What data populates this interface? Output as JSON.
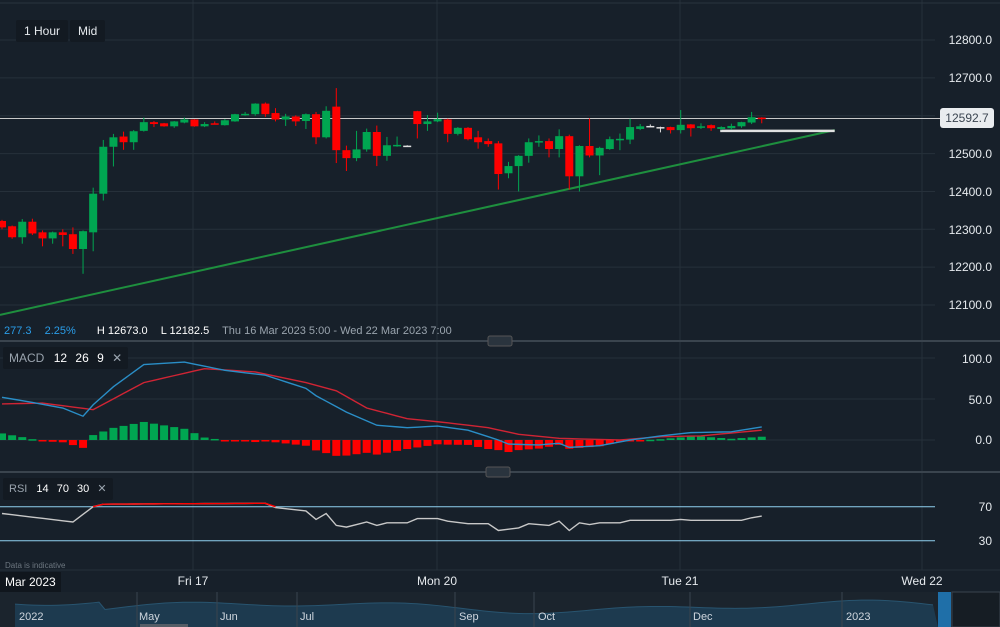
{
  "toolbar": {
    "interval": "1 Hour",
    "price_type": "Mid"
  },
  "info_bar": {
    "change": "277.3",
    "change_pct": "2.25%",
    "high": "H 12673.0",
    "low": "L 12182.5",
    "range": "Thu 16 Mar 2023 5:00 - Wed 22 Mar 2023 7:00"
  },
  "colors": {
    "background": "#17202a",
    "up": "#00a651",
    "down": "#ff0000",
    "trendline": "#1e8f3e",
    "macd": "#2a8ec7",
    "signal": "#d02434",
    "rsi": "#c8c8c8",
    "rsi_overbought": "#ff0000"
  },
  "current_price": "12592.7",
  "price_axis": [
    "12800.0",
    "12700.0",
    "12600.0",
    "12500.0",
    "12400.0",
    "12300.0",
    "12200.0",
    "12100.0"
  ],
  "macd": {
    "label": "MACD",
    "params": [
      "12",
      "26",
      "9"
    ],
    "close": "✕",
    "axis": [
      "100.0",
      "50.0",
      "0.0"
    ]
  },
  "rsi": {
    "label": "RSI",
    "params": [
      "14",
      "70",
      "30"
    ],
    "close": "✕",
    "axis": [
      "70",
      "30"
    ]
  },
  "disclaimer": "Data is indicative",
  "time_axis": {
    "current": "Mar 2023",
    "labels": [
      "Fri 17",
      "Mon 20",
      "Tue 21",
      "Wed 22"
    ]
  },
  "navigator": {
    "labels": [
      "2022",
      "May",
      "Jun",
      "Jul",
      "Sep",
      "Oct",
      "Dec",
      "2023"
    ]
  },
  "chart_data": {
    "type": "candlestick",
    "interval": "1 Hour",
    "ylim": [
      12050,
      12850
    ],
    "candles_ohlc": [
      [
        12322,
        12325,
        12300,
        12305
      ],
      [
        12308,
        12310,
        12275,
        12279
      ],
      [
        12279,
        12327,
        12262,
        12320
      ],
      [
        12320,
        12328,
        12285,
        12289
      ],
      [
        12292,
        12297,
        12255,
        12276
      ],
      [
        12276,
        12294,
        12262,
        12292
      ],
      [
        12292,
        12300,
        12255,
        12285
      ],
      [
        12287,
        12305,
        12235,
        12248
      ],
      [
        12248,
        12297,
        12182.5,
        12295
      ],
      [
        12292,
        12410,
        12242,
        12394
      ],
      [
        12394,
        12536,
        12376,
        12518
      ],
      [
        12518,
        12552,
        12466,
        12543
      ],
      [
        12545,
        12558,
        12510,
        12530
      ],
      [
        12530,
        12562,
        12510,
        12559
      ],
      [
        12560,
        12595,
        12558,
        12583
      ],
      [
        12583,
        12586,
        12570,
        12578
      ],
      [
        12580,
        12581,
        12571,
        12572
      ],
      [
        12572,
        12586,
        12568,
        12585
      ],
      [
        12582,
        12595,
        12580,
        12590
      ],
      [
        12590,
        12591,
        12571,
        12572
      ],
      [
        12572,
        12583,
        12570,
        12578
      ],
      [
        12580,
        12585,
        12577,
        12578
      ],
      [
        12575,
        12591,
        12574,
        12588
      ],
      [
        12585,
        12605,
        12584,
        12604
      ],
      [
        12603,
        12610,
        12600,
        12605
      ],
      [
        12604,
        12633,
        12600,
        12632
      ],
      [
        12632,
        12635,
        12597,
        12604
      ],
      [
        12607,
        12620,
        12585,
        12590
      ],
      [
        12590,
        12605,
        12573,
        12598
      ],
      [
        12598,
        12601,
        12573,
        12585
      ],
      [
        12586,
        12606,
        12565,
        12604
      ],
      [
        12604,
        12610,
        12525,
        12543
      ],
      [
        12543,
        12625,
        12540,
        12613
      ],
      [
        12624,
        12673,
        12475,
        12509
      ],
      [
        12509,
        12521,
        12454,
        12488
      ],
      [
        12488,
        12560,
        12480,
        12511
      ],
      [
        12511,
        12566,
        12505,
        12557
      ],
      [
        12557,
        12574,
        12467,
        12494
      ],
      [
        12494,
        12544,
        12481,
        12522
      ],
      [
        12521,
        12545,
        12518,
        12523
      ],
      [
        12521,
        12522,
        12520,
        12521
      ],
      [
        12612,
        12613,
        12540,
        12578
      ],
      [
        12578,
        12602,
        12560,
        12585
      ],
      [
        12585,
        12608,
        12583,
        12591
      ],
      [
        12590,
        12592,
        12530,
        12552
      ],
      [
        12552,
        12570,
        12548,
        12568
      ],
      [
        12568,
        12570,
        12535,
        12538
      ],
      [
        12543,
        12560,
        12513,
        12530
      ],
      [
        12533,
        12540,
        12518,
        12525
      ],
      [
        12527,
        12533,
        12405,
        12446
      ],
      [
        12448,
        12478,
        12435,
        12467
      ],
      [
        12467,
        12496,
        12400,
        12494
      ],
      [
        12494,
        12540,
        12476,
        12530
      ],
      [
        12530,
        12548,
        12518,
        12533
      ],
      [
        12533,
        12540,
        12490,
        12512
      ],
      [
        12512,
        12564,
        12490,
        12546
      ],
      [
        12546,
        12550,
        12405,
        12440
      ],
      [
        12440,
        12522,
        12400,
        12520
      ],
      [
        12520,
        12593,
        12490,
        12495
      ],
      [
        12495,
        12518,
        12443,
        12515
      ],
      [
        12512,
        12545,
        12510,
        12538
      ],
      [
        12537,
        12553,
        12509,
        12539
      ],
      [
        12537,
        12592,
        12525,
        12570
      ],
      [
        12565,
        12578,
        12562,
        12572
      ],
      [
        12573,
        12577,
        12572,
        12573
      ],
      [
        12570,
        12571,
        12556,
        12570
      ],
      [
        12570,
        12571,
        12553,
        12562
      ],
      [
        12562,
        12615,
        12553,
        12576
      ],
      [
        12577,
        12578,
        12545,
        12567
      ],
      [
        12568,
        12580,
        12565,
        12572
      ],
      [
        12575,
        12577,
        12560,
        12567
      ],
      [
        12565,
        12572,
        12562,
        12570
      ],
      [
        12567,
        12579,
        12563,
        12573
      ],
      [
        12572,
        12584,
        12568,
        12583
      ],
      [
        12582,
        12610,
        12578,
        12596
      ],
      [
        12595,
        12596,
        12580,
        12592.7
      ]
    ],
    "trendline": [
      [
        -0.2,
        12074
      ],
      [
        82.2,
        12562
      ]
    ],
    "support_line": [
      [
        70.9,
        12560
      ],
      [
        82.2,
        12560
      ]
    ],
    "macd_ylim": [
      -30,
      115
    ],
    "macd_line": [
      [
        0,
        52
      ],
      [
        2,
        48
      ],
      [
        6,
        39
      ],
      [
        8,
        29
      ],
      [
        9,
        43
      ],
      [
        11,
        65
      ],
      [
        14,
        92
      ],
      [
        18,
        95
      ],
      [
        22,
        85
      ],
      [
        26,
        79
      ],
      [
        30,
        63
      ],
      [
        31,
        54
      ],
      [
        34,
        34
      ],
      [
        37,
        18
      ],
      [
        40,
        15
      ],
      [
        43,
        17
      ],
      [
        46,
        12
      ],
      [
        49,
        0
      ],
      [
        50,
        -5
      ],
      [
        53,
        -6
      ],
      [
        55,
        -4
      ],
      [
        56,
        -9
      ],
      [
        59,
        -7
      ],
      [
        62,
        0
      ],
      [
        65,
        5
      ],
      [
        68,
        9
      ],
      [
        72,
        10
      ],
      [
        75,
        16
      ]
    ],
    "signal_line": [
      [
        0,
        44
      ],
      [
        4,
        45
      ],
      [
        9,
        37
      ],
      [
        14,
        70
      ],
      [
        20,
        87
      ],
      [
        25,
        83
      ],
      [
        30,
        70
      ],
      [
        33,
        60
      ],
      [
        36,
        39
      ],
      [
        40,
        26
      ],
      [
        44,
        21
      ],
      [
        48,
        15
      ],
      [
        51,
        7
      ],
      [
        55,
        2
      ],
      [
        61,
        0
      ],
      [
        65,
        4
      ],
      [
        69,
        5
      ],
      [
        75,
        12
      ]
    ],
    "rsi_line": [
      [
        0,
        62
      ],
      [
        7,
        52
      ],
      [
        9,
        70
      ],
      [
        10,
        73
      ],
      [
        26,
        74
      ],
      [
        27,
        69
      ],
      [
        30,
        65
      ],
      [
        31,
        55
      ],
      [
        32,
        62
      ],
      [
        33,
        48
      ],
      [
        34,
        46
      ],
      [
        36,
        52
      ],
      [
        37,
        48
      ],
      [
        38,
        51
      ],
      [
        40,
        51
      ],
      [
        41,
        56
      ],
      [
        43,
        56
      ],
      [
        44,
        53
      ],
      [
        46,
        50
      ],
      [
        48,
        50
      ],
      [
        49,
        42
      ],
      [
        51,
        45
      ],
      [
        52,
        50
      ],
      [
        54,
        48
      ],
      [
        55,
        53
      ],
      [
        56,
        42
      ],
      [
        57,
        51
      ],
      [
        58,
        49
      ],
      [
        59,
        51
      ],
      [
        61,
        51
      ],
      [
        62,
        54
      ],
      [
        66,
        54
      ],
      [
        67,
        55
      ],
      [
        68,
        54
      ],
      [
        73,
        54
      ],
      [
        74,
        57
      ],
      [
        75,
        59
      ]
    ],
    "rsi_levels": [
      70,
      30
    ]
  }
}
